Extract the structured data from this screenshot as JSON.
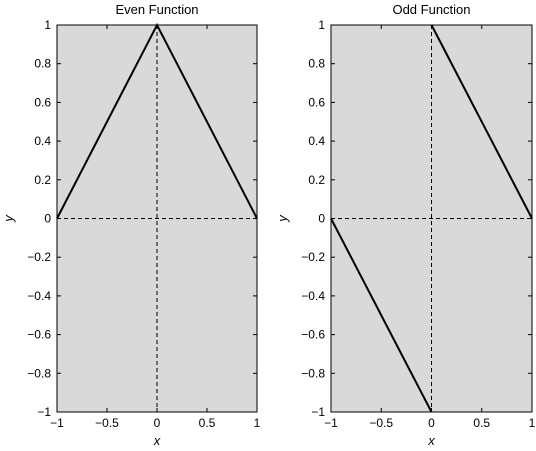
{
  "chart_data": [
    {
      "type": "line",
      "title": "Even Function",
      "xlabel": "x",
      "ylabel": "y",
      "xlim": [
        -1,
        1
      ],
      "ylim": [
        -1,
        1
      ],
      "xticks": [
        -1,
        -0.5,
        0,
        0.5,
        1
      ],
      "xtick_labels": [
        "−1",
        "−0.5",
        "0",
        "0.5",
        "1"
      ],
      "yticks": [
        1,
        0.8,
        0.6,
        0.4,
        0.2,
        0,
        -0.2,
        -0.4,
        -0.6,
        -0.8,
        -1
      ],
      "ytick_labels": [
        "1",
        "0.8",
        "0.6",
        "0.4",
        "0.2",
        "0",
        "−0.2",
        "−0.4",
        "−0.6",
        "−0.8",
        "−1"
      ],
      "grid": false,
      "zero_lines": true,
      "series": [
        {
          "x": [
            -1,
            0,
            1
          ],
          "y": [
            0,
            1,
            0
          ]
        }
      ]
    },
    {
      "type": "line",
      "title": "Odd Function",
      "xlabel": "x",
      "ylabel": "y",
      "xlim": [
        -1,
        1
      ],
      "ylim": [
        -1,
        1
      ],
      "xticks": [
        -1,
        -0.5,
        0,
        0.5,
        1
      ],
      "xtick_labels": [
        "−1",
        "−0.5",
        "0",
        "0.5",
        "1"
      ],
      "yticks": [
        1,
        0.8,
        0.6,
        0.4,
        0.2,
        0,
        -0.2,
        -0.4,
        -0.6,
        -0.8,
        -1
      ],
      "ytick_labels": [
        "1",
        "0.8",
        "0.6",
        "0.4",
        "0.2",
        "0",
        "−0.2",
        "−0.4",
        "−0.6",
        "−0.8",
        "−1"
      ],
      "grid": false,
      "zero_lines": true,
      "series": [
        {
          "x": [
            -1,
            0
          ],
          "y": [
            0,
            -1
          ]
        },
        {
          "x": [
            0,
            1
          ],
          "y": [
            1,
            0
          ]
        }
      ]
    }
  ]
}
